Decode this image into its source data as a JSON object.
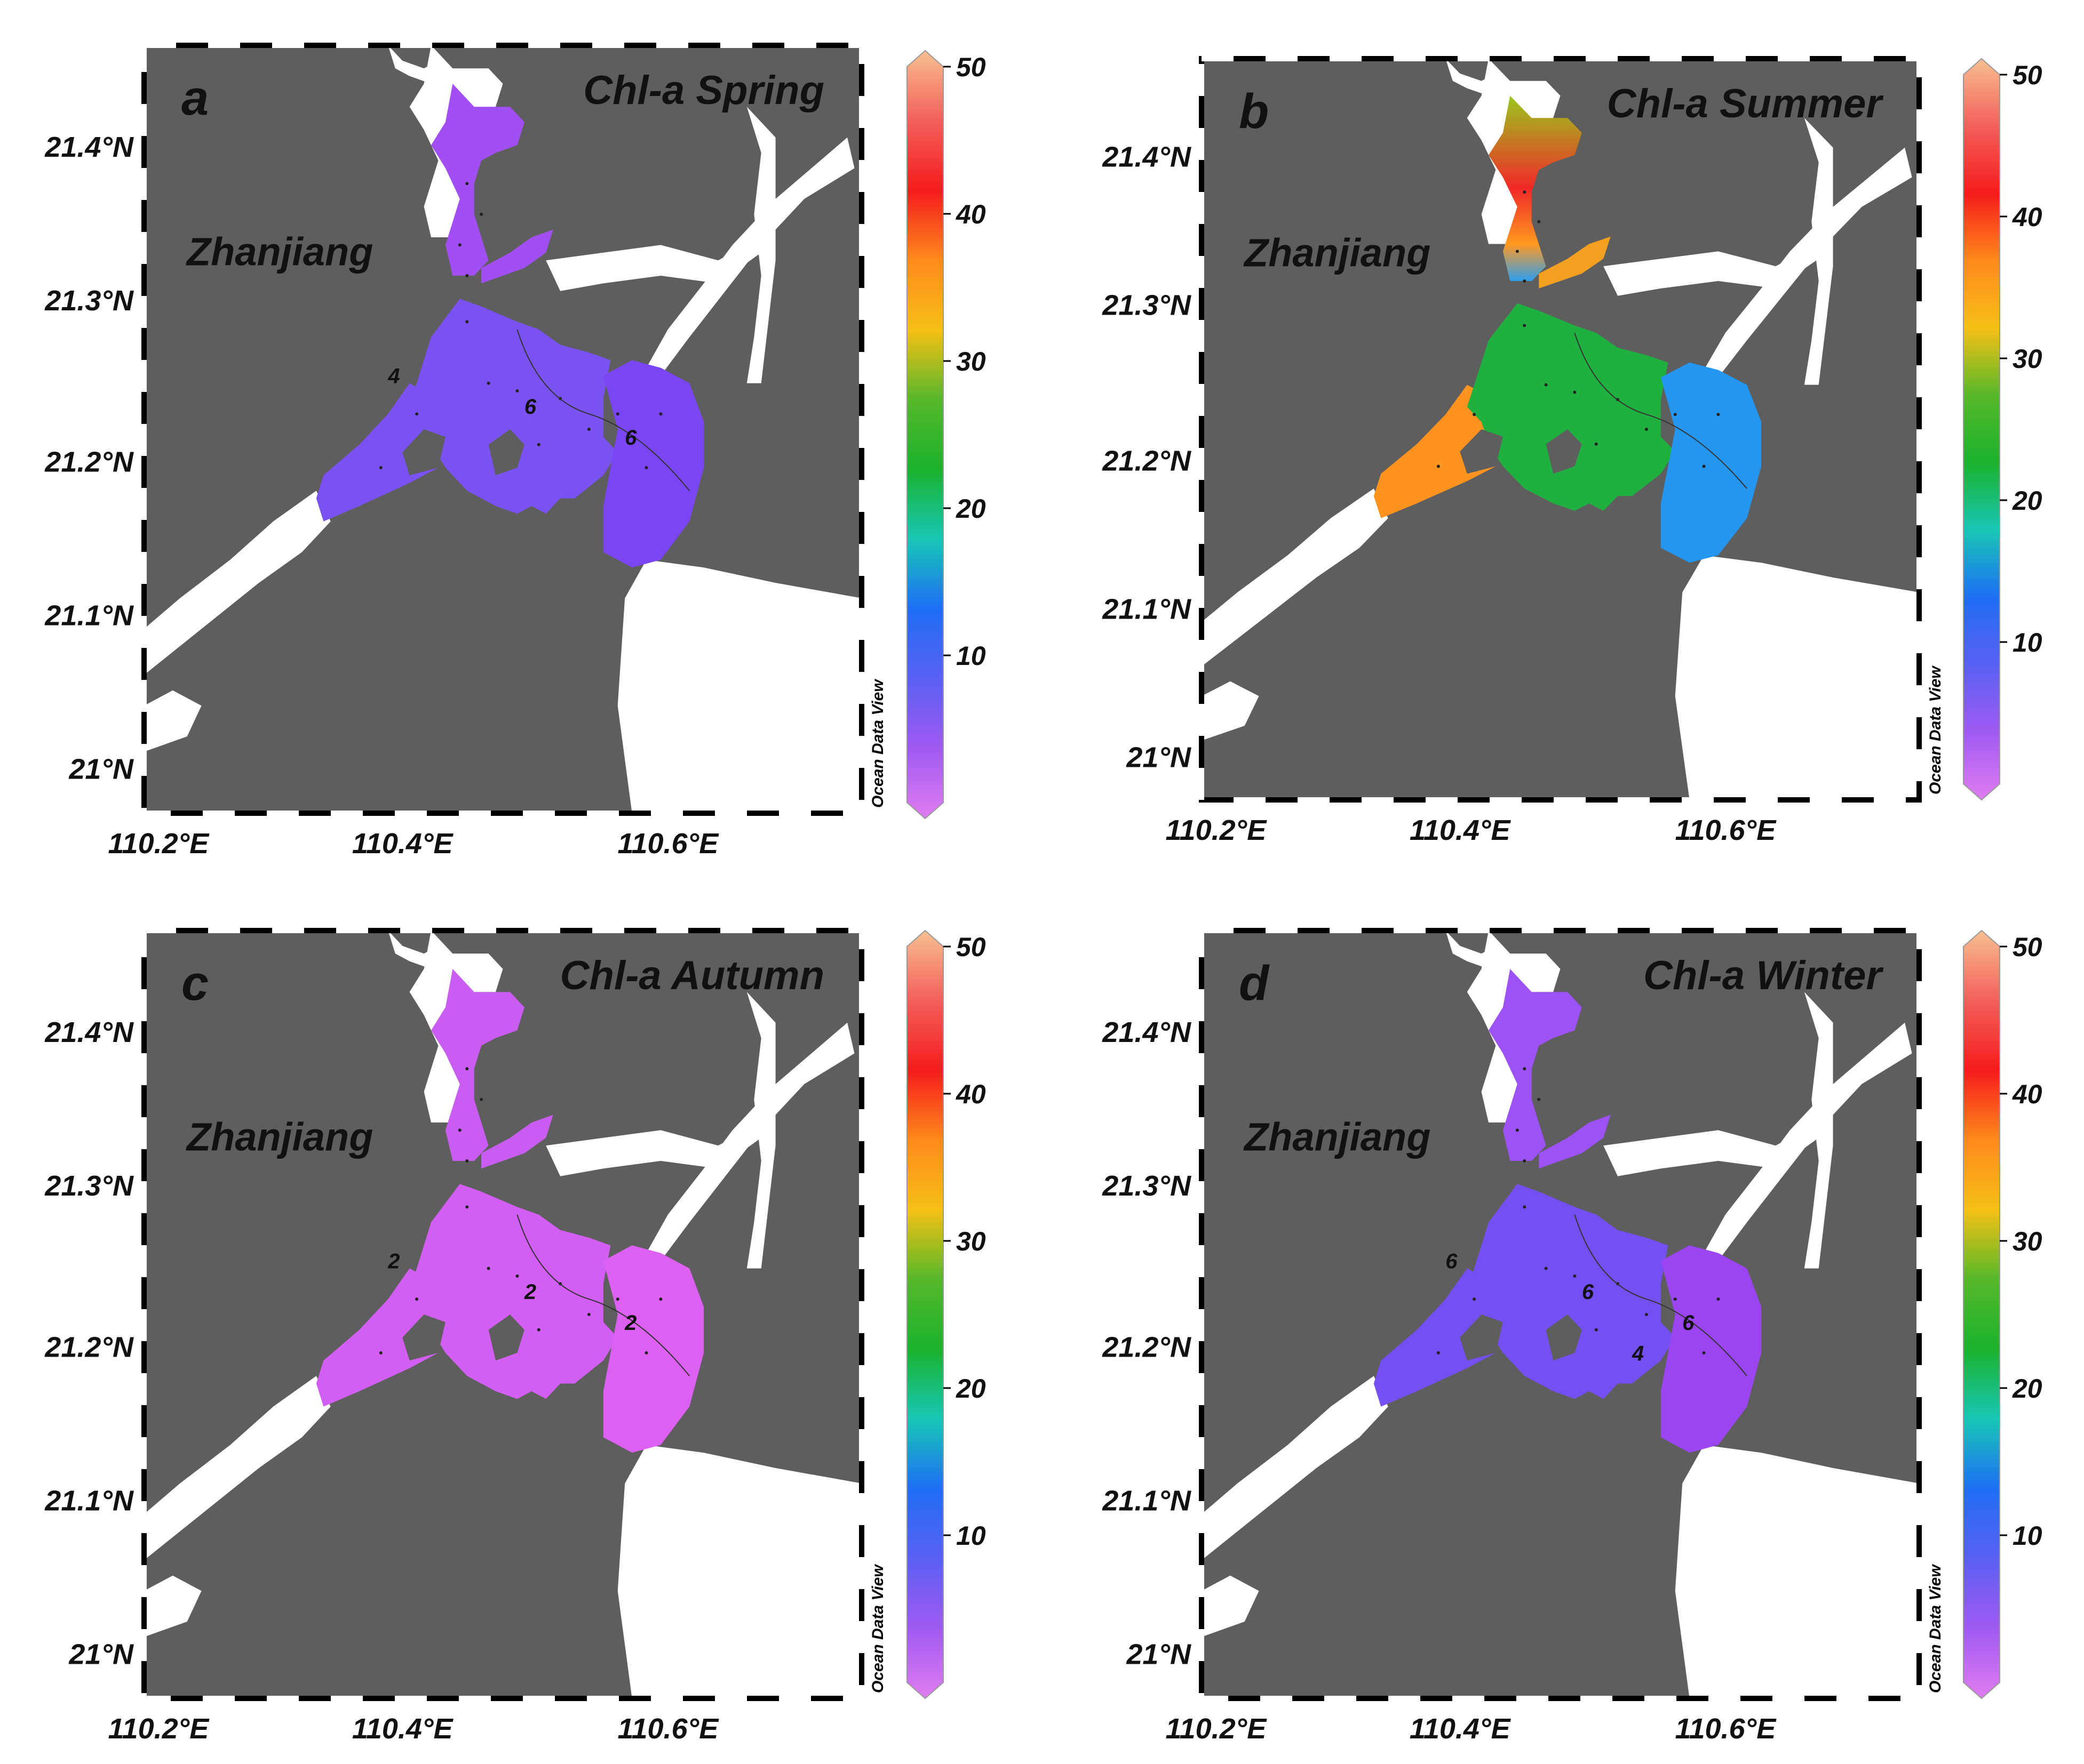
{
  "figure": {
    "panels": [
      {
        "id": "a",
        "letter": "a",
        "title": "Chl-a Spring",
        "city_label": "Zhanjiang",
        "contour_labels": [
          "4",
          "6",
          "6"
        ],
        "fill_style": "violet-uniform",
        "colors": {
          "upper": "#a14ff2",
          "main": "#7a52f2",
          "outer": "#7a46f3"
        }
      },
      {
        "id": "b",
        "letter": "b",
        "title": "Chl-a Summer",
        "city_label": "Zhanjiang",
        "contour_labels": [],
        "fill_style": "summer-gradient",
        "colors": {
          "upper": "#9ac81e",
          "mid": "#f12828",
          "west": "#ff9320",
          "main": "#20b040",
          "outer": "#2596f0"
        }
      },
      {
        "id": "c",
        "letter": "c",
        "title": "Chl-a Autumn",
        "city_label": "Zhanjiang",
        "contour_labels": [
          "2",
          "2",
          "2"
        ],
        "fill_style": "pink-uniform",
        "colors": {
          "upper": "#c95df1",
          "main": "#d35ef3",
          "outer": "#dc60f1"
        }
      },
      {
        "id": "d",
        "letter": "d",
        "title": "Chl-a Winter",
        "city_label": "Zhanjiang",
        "contour_labels": [
          "6",
          "6",
          "6",
          "4"
        ],
        "fill_style": "violet-uniform",
        "colors": {
          "upper": "#9c52f4",
          "main": "#7450f2",
          "outer": "#9b45f2"
        }
      }
    ],
    "axes": {
      "x_ticks": [
        "110.2°E",
        "110.4°E",
        "110.6°E"
      ],
      "y_ticks": [
        "21°N",
        "21.1°N",
        "21.2°N",
        "21.3°N",
        "21.4°N"
      ]
    },
    "colorbar": {
      "ticks": [
        "10",
        "20",
        "30",
        "40",
        "50"
      ],
      "credit": "Ocean Data View",
      "colors": [
        "#e07cf0",
        "#a05af2",
        "#5a60f3",
        "#1e6ef5",
        "#17c7b5",
        "#1bb22c",
        "#55b82a",
        "#f5c015",
        "#ff8a1c",
        "#f41c1c",
        "#f3605a",
        "#f7bf90"
      ]
    },
    "colors": {
      "land": "#5e5e5e",
      "water": "#ffffff",
      "text": "#111111"
    }
  }
}
